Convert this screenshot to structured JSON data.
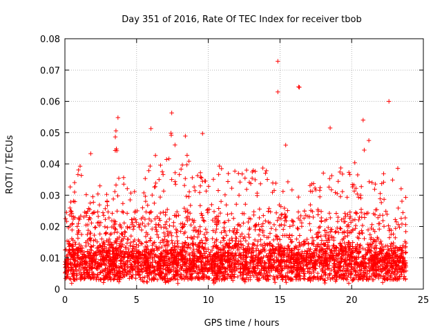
{
  "chart_data": {
    "type": "scatter",
    "title": "Day 351 of 2016, Rate Of TEC Index for receiver tbob",
    "xlabel": "GPS time / hours",
    "ylabel": "ROTI / TECUs",
    "xlim": [
      0,
      25
    ],
    "ylim": [
      0,
      0.08
    ],
    "x_ticks": [
      0,
      5,
      10,
      15,
      20,
      25
    ],
    "x_tick_labels": [
      "0",
      "5",
      "10",
      "15",
      "20",
      "25"
    ],
    "y_ticks": [
      0,
      0.01,
      0.02,
      0.03,
      0.04,
      0.05,
      0.06,
      0.07,
      0.08
    ],
    "y_tick_labels": [
      "0",
      "0.01",
      "0.02",
      "0.03",
      "0.04",
      "0.05",
      "0.06",
      "0.07",
      "0.08"
    ],
    "grid": true,
    "marker": "plus",
    "color": "#ff0000",
    "x_data_range": [
      0,
      23.8
    ],
    "outliers": [
      {
        "x": 14.85,
        "y": 0.0728
      },
      {
        "x": 14.85,
        "y": 0.063
      },
      {
        "x": 16.3,
        "y": 0.0646
      },
      {
        "x": 16.35,
        "y": 0.0645
      },
      {
        "x": 22.6,
        "y": 0.06
      },
      {
        "x": 7.45,
        "y": 0.0563
      },
      {
        "x": 20.8,
        "y": 0.054
      },
      {
        "x": 3.7,
        "y": 0.0548
      },
      {
        "x": 18.5,
        "y": 0.0515
      },
      {
        "x": 6.0,
        "y": 0.0513
      },
      {
        "x": 9.6,
        "y": 0.0497
      },
      {
        "x": 8.4,
        "y": 0.0489
      },
      {
        "x": 21.2,
        "y": 0.0475
      },
      {
        "x": 15.4,
        "y": 0.046
      },
      {
        "x": 1.8,
        "y": 0.0433
      }
    ],
    "envelope": [
      {
        "x": 0.0,
        "y": 0.031
      },
      {
        "x": 0.5,
        "y": 0.034
      },
      {
        "x": 1.0,
        "y": 0.041
      },
      {
        "x": 1.5,
        "y": 0.03
      },
      {
        "x": 2.0,
        "y": 0.031
      },
      {
        "x": 2.5,
        "y": 0.035
      },
      {
        "x": 3.0,
        "y": 0.033
      },
      {
        "x": 3.6,
        "y": 0.052
      },
      {
        "x": 4.0,
        "y": 0.038
      },
      {
        "x": 4.5,
        "y": 0.04
      },
      {
        "x": 5.0,
        "y": 0.031
      },
      {
        "x": 5.5,
        "y": 0.033
      },
      {
        "x": 6.0,
        "y": 0.049
      },
      {
        "x": 6.5,
        "y": 0.04
      },
      {
        "x": 7.0,
        "y": 0.042
      },
      {
        "x": 7.5,
        "y": 0.052
      },
      {
        "x": 8.0,
        "y": 0.04
      },
      {
        "x": 8.5,
        "y": 0.045
      },
      {
        "x": 9.0,
        "y": 0.038
      },
      {
        "x": 9.5,
        "y": 0.04
      },
      {
        "x": 10.0,
        "y": 0.036
      },
      {
        "x": 10.5,
        "y": 0.038
      },
      {
        "x": 11.0,
        "y": 0.044
      },
      {
        "x": 11.5,
        "y": 0.04
      },
      {
        "x": 12.0,
        "y": 0.042
      },
      {
        "x": 12.5,
        "y": 0.037
      },
      {
        "x": 13.0,
        "y": 0.04
      },
      {
        "x": 13.5,
        "y": 0.038
      },
      {
        "x": 14.0,
        "y": 0.041
      },
      {
        "x": 14.5,
        "y": 0.035
      },
      {
        "x": 15.0,
        "y": 0.033
      },
      {
        "x": 15.5,
        "y": 0.04
      },
      {
        "x": 16.0,
        "y": 0.036
      },
      {
        "x": 16.5,
        "y": 0.031
      },
      {
        "x": 17.0,
        "y": 0.033
      },
      {
        "x": 17.5,
        "y": 0.035
      },
      {
        "x": 18.0,
        "y": 0.043
      },
      {
        "x": 18.5,
        "y": 0.04
      },
      {
        "x": 19.0,
        "y": 0.037
      },
      {
        "x": 19.5,
        "y": 0.041
      },
      {
        "x": 20.0,
        "y": 0.042
      },
      {
        "x": 20.5,
        "y": 0.045
      },
      {
        "x": 21.0,
        "y": 0.049
      },
      {
        "x": 21.5,
        "y": 0.035
      },
      {
        "x": 22.0,
        "y": 0.038
      },
      {
        "x": 22.5,
        "y": 0.042
      },
      {
        "x": 23.0,
        "y": 0.036
      },
      {
        "x": 23.5,
        "y": 0.043
      },
      {
        "x": 23.8,
        "y": 0.03
      }
    ],
    "typical_y_range": [
      0.003,
      0.025
    ],
    "dense_band_y": 0.009
  }
}
